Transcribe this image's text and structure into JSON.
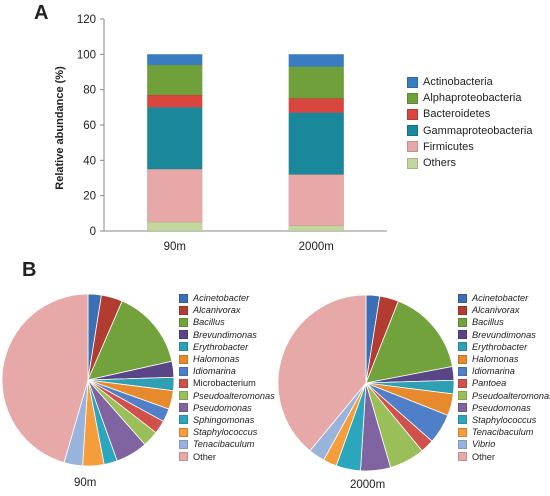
{
  "panels": {
    "a_label": "A",
    "b_label": "B"
  },
  "chart_data": [
    {
      "type": "bar",
      "stacked": true,
      "ylabel": "Relative abundance (%)",
      "xlabel": "",
      "ylim": [
        0,
        120
      ],
      "yticks": [
        0,
        20,
        40,
        60,
        80,
        100,
        120
      ],
      "grid": false,
      "legend_position": "right",
      "categories": [
        "90m",
        "2000m"
      ],
      "series": [
        {
          "name": "Others",
          "color": "#c3d69b",
          "values": [
            5,
            3
          ]
        },
        {
          "name": "Firmicutes",
          "color": "#e6a9a8",
          "values": [
            30,
            29
          ]
        },
        {
          "name": "Gammaproteobacteria",
          "color": "#1b879b",
          "values": [
            35,
            35
          ]
        },
        {
          "name": "Bacteroidetes",
          "color": "#d9463f",
          "values": [
            7,
            8
          ]
        },
        {
          "name": "Alphaproteobacteria",
          "color": "#70a03a",
          "values": [
            17,
            18
          ]
        },
        {
          "name": "Actinobacteria",
          "color": "#3a7cc1",
          "values": [
            6,
            7
          ]
        }
      ],
      "legend_order": [
        "Actinobacteria",
        "Alphaproteobacteria",
        "Bacteroidetes",
        "Gammaproteobacteria",
        "Firmicutes",
        "Others"
      ]
    },
    {
      "type": "pie",
      "caption": "90m",
      "start_angle_deg": 0,
      "direction": "clockwise",
      "slices": [
        {
          "label": "Acinetobacter",
          "italic": true,
          "color": "#3a6fb5",
          "value": 2.5
        },
        {
          "label": "Alcanivorax",
          "italic": true,
          "color": "#b23b32",
          "value": 4.0
        },
        {
          "label": "Bacillus",
          "italic": true,
          "color": "#72a23c",
          "value": 15.0
        },
        {
          "label": "Brevundimonas",
          "italic": true,
          "color": "#5a4587",
          "value": 3.0
        },
        {
          "label": "Erythrobacter",
          "italic": true,
          "color": "#2f9fb4",
          "value": 2.5
        },
        {
          "label": "Halomonas",
          "italic": true,
          "color": "#e78a2e",
          "value": 3.5
        },
        {
          "label": "Idiomarina",
          "italic": true,
          "color": "#4f80c7",
          "value": 2.5
        },
        {
          "label": "Microbacterium",
          "italic": false,
          "color": "#d0504b",
          "value": 2.5
        },
        {
          "label": "Pseudoalteromonas",
          "italic": true,
          "color": "#9bbf58",
          "value": 3.0
        },
        {
          "label": "Pseudomonas",
          "italic": true,
          "color": "#8064a2",
          "value": 6.0
        },
        {
          "label": "Sphingomonas",
          "italic": true,
          "color": "#2ba6bd",
          "value": 2.5
        },
        {
          "label": "Staphylococcus",
          "italic": true,
          "color": "#f59c3b",
          "value": 4.0
        },
        {
          "label": "Tenacibaculum",
          "italic": true,
          "color": "#98b4dc",
          "value": 3.5
        },
        {
          "label": "Other",
          "italic": false,
          "color": "#e6a9a8",
          "value": 45.5
        }
      ]
    },
    {
      "type": "pie",
      "caption": "2000m",
      "start_angle_deg": 0,
      "direction": "clockwise",
      "slices": [
        {
          "label": "Acinetobacter",
          "italic": true,
          "color": "#3a6fb5",
          "value": 2.5
        },
        {
          "label": "Alcanivorax",
          "italic": true,
          "color": "#b23b32",
          "value": 3.5
        },
        {
          "label": "Bacillus",
          "italic": true,
          "color": "#72a23c",
          "value": 16.0
        },
        {
          "label": "Brevundimonas",
          "italic": true,
          "color": "#5a4587",
          "value": 2.5
        },
        {
          "label": "Erythrobacter",
          "italic": true,
          "color": "#2f9fb4",
          "value": 2.5
        },
        {
          "label": "Halomonas",
          "italic": true,
          "color": "#e78a2e",
          "value": 4.0
        },
        {
          "label": "Idiomarina",
          "italic": true,
          "color": "#4f80c7",
          "value": 5.5
        },
        {
          "label": "Pantoea",
          "italic": true,
          "color": "#d0504b",
          "value": 2.5
        },
        {
          "label": "Pseudoalteromonas",
          "italic": true,
          "color": "#9bbf58",
          "value": 6.5
        },
        {
          "label": "Pseudomonas",
          "italic": true,
          "color": "#8064a2",
          "value": 5.5
        },
        {
          "label": "Staphylococcus",
          "italic": true,
          "color": "#2ba6bd",
          "value": 4.5
        },
        {
          "label": "Tenacibaculum",
          "italic": true,
          "color": "#f59c3b",
          "value": 2.5
        },
        {
          "label": "Vibrio",
          "italic": true,
          "color": "#98b4dc",
          "value": 3.0
        },
        {
          "label": "Other",
          "italic": false,
          "color": "#e6a9a8",
          "value": 39.0
        }
      ]
    }
  ]
}
